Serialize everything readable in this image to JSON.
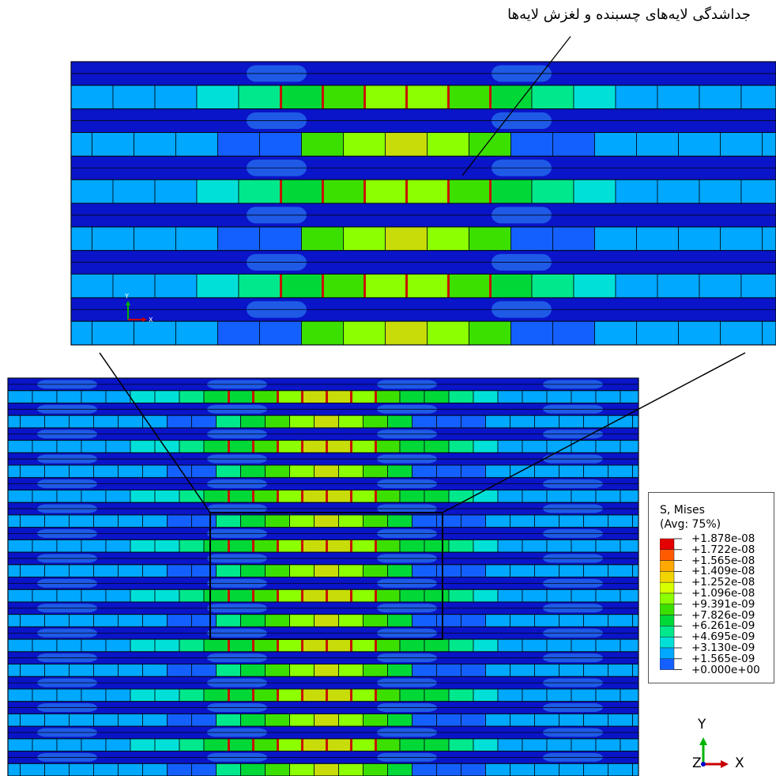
{
  "annotation": "جداشدگی لایه‌های چسبنده و لغزش لایه‌ها",
  "legend": {
    "title": "S, Mises",
    "subtitle": "(Avg: 75%)",
    "labels": [
      "+1.878e-08",
      "+1.722e-08",
      "+1.565e-08",
      "+1.409e-08",
      "+1.252e-08",
      "+1.096e-08",
      "+9.391e-09",
      "+7.826e-09",
      "+6.261e-09",
      "+4.695e-09",
      "+3.130e-09",
      "+1.565e-09",
      "+0.000e+00"
    ],
    "colors": [
      "#e50000",
      "#ff5a00",
      "#ffa800",
      "#f2d400",
      "#d8ff00",
      "#8cff00",
      "#3ce000",
      "#00d838",
      "#00e88c",
      "#00e0d8",
      "#00a8ff",
      "#1460ff",
      "#0000e8"
    ]
  },
  "axis_triad": {
    "y": "Y",
    "x": "X",
    "z": "Z"
  },
  "inset_triad": {
    "y": "Y",
    "x": "X"
  },
  "colors": {
    "background": "#0a14c8",
    "grid_line": "#000814",
    "halo": "#1e5ae6",
    "yellow": "#c8dc0a",
    "red_joint": "#c81400",
    "axis_green": "#00b400",
    "axis_red": "#c80000",
    "axis_blue": "#0000c8"
  }
}
